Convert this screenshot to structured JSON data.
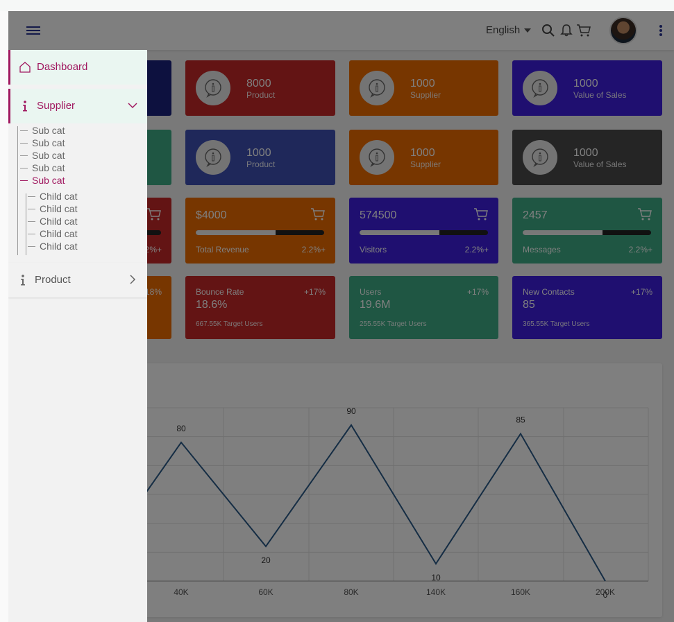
{
  "header": {
    "language": "English"
  },
  "stat_cards": [
    {
      "value": "8000",
      "label": "Product",
      "color": "#c62828"
    },
    {
      "value": "1000",
      "label": "Supplier",
      "color": "#ef6c00"
    },
    {
      "value": "1000",
      "label": "Value of Sales",
      "color": "#3f1ee0"
    },
    {
      "value": "1000",
      "label": "Product",
      "color": "#3f51b5"
    },
    {
      "value": "1000",
      "label": "Supplier",
      "color": "#ef6c00"
    },
    {
      "value": "1000",
      "label": "Value of Sales",
      "color": "#4a4a4a"
    }
  ],
  "progress_cards": [
    {
      "value": "$4000",
      "label": "Total Revenue",
      "pct": "2.2%+",
      "progress": 0.62,
      "color": "#ef6c00"
    },
    {
      "value": "574500",
      "label": "Visitors",
      "pct": "2.2%+",
      "progress": 0.62,
      "color": "#3f1ee0"
    },
    {
      "value": "2457",
      "label": "Messages",
      "pct": "2.2%+",
      "progress": 0.62,
      "color": "#3ead86"
    }
  ],
  "partial_cards": {
    "pct": "2%+",
    "pct2": "18%"
  },
  "summary_cards": [
    {
      "title": "Bounce Rate",
      "change": "+17%",
      "value": "18.6%",
      "sub": "667.55K Target Users",
      "color": "#c62828"
    },
    {
      "title": "Users",
      "change": "+17%",
      "value": "19.6M",
      "sub": "255.55K Target Users",
      "color": "#3ead86"
    },
    {
      "title": "New Contacts",
      "change": "+17%",
      "value": "85",
      "sub": "365.55K Target Users",
      "color": "#3f1ee0"
    }
  ],
  "chart_data": {
    "type": "line",
    "categories": [
      "40K",
      "60K",
      "80K",
      "140K",
      "160K",
      "200K"
    ],
    "values": [
      80,
      20,
      90,
      10,
      85,
      0
    ],
    "ylim": [
      0,
      100
    ],
    "grid": true,
    "color": "#2b5a88"
  },
  "sidebar": {
    "dashboard": "Dashboard",
    "supplier": "Supplier",
    "product": "Product",
    "sub_items": [
      "Sub cat",
      "Sub cat",
      "Sub cat",
      "Sub cat",
      "Sub cat"
    ],
    "child_items": [
      "Child cat",
      "Child cat",
      "Child cat",
      "Child cat",
      "Child cat"
    ],
    "accent": "#a0185f"
  }
}
